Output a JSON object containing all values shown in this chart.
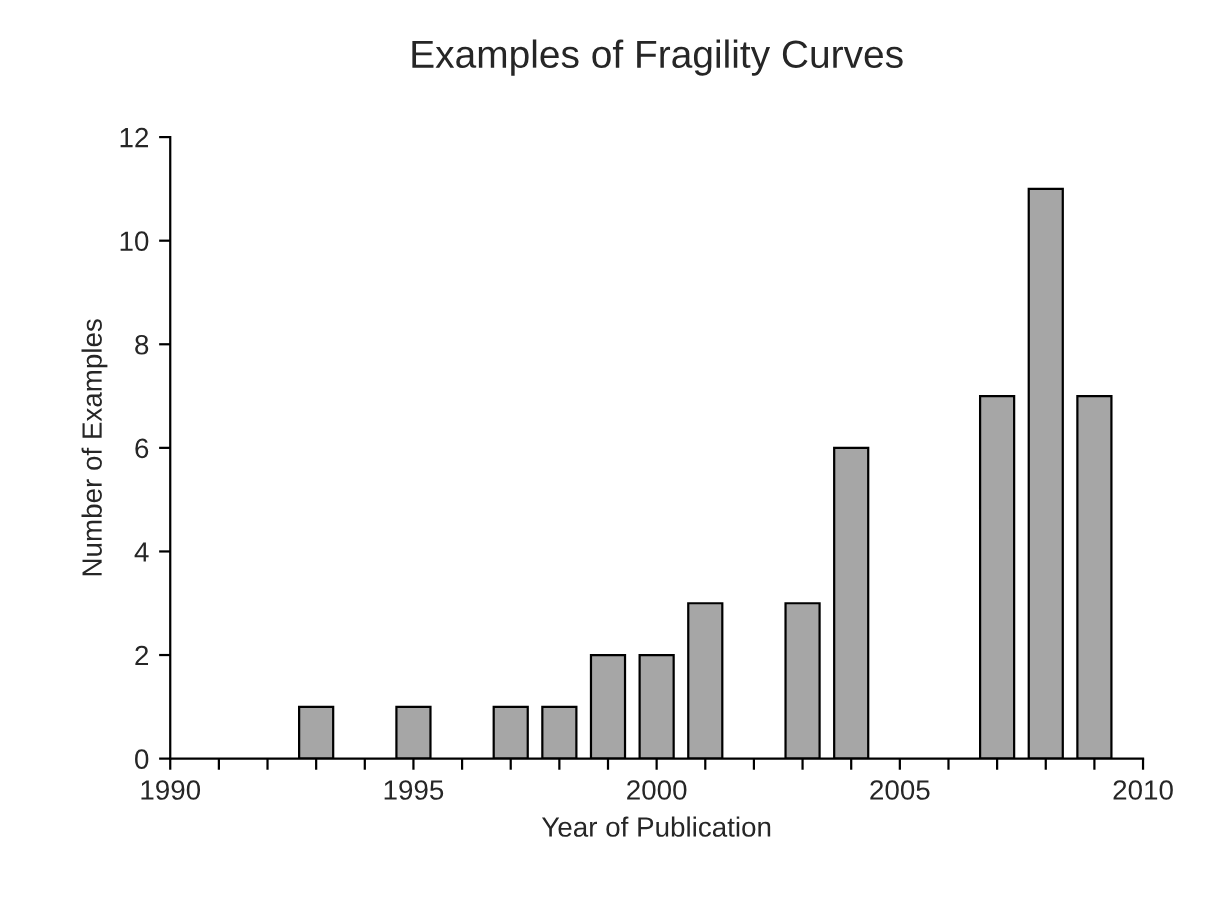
{
  "chart_data": {
    "type": "bar",
    "title": "Examples of Fragility Curves",
    "xlabel": "Year of Publication",
    "ylabel": "Number of Examples",
    "x": [
      1993,
      1995,
      1997,
      1998,
      1999,
      2000,
      2001,
      2003,
      2004,
      2007,
      2008,
      2009
    ],
    "values": [
      1,
      1,
      1,
      1,
      2,
      2,
      3,
      3,
      6,
      7,
      11,
      7
    ],
    "color": "#a6a6a6",
    "xlim": [
      1990,
      2010
    ],
    "xticks": [
      1990,
      {
        "value": 1991,
        "label": null
      },
      {
        "value": 1992,
        "label": null
      },
      {
        "value": 1993,
        "label": null
      },
      {
        "value": 1994,
        "label": null
      },
      1995,
      {
        "value": 1996,
        "label": null
      },
      {
        "value": 1997,
        "label": null
      },
      {
        "value": 1998,
        "label": null
      },
      {
        "value": 1999,
        "label": null
      },
      2000,
      {
        "value": 2001,
        "label": null
      },
      {
        "value": 2002,
        "label": null
      },
      {
        "value": 2003,
        "label": null
      },
      {
        "value": 2004,
        "label": null
      },
      2005,
      {
        "value": 2006,
        "label": null
      },
      {
        "value": 2007,
        "label": null
      },
      {
        "value": 2008,
        "label": null
      },
      {
        "value": 2009,
        "label": null
      },
      2010
    ],
    "ylim": [
      0,
      12
    ],
    "yticks": [
      0,
      2,
      4,
      6,
      8,
      10,
      12
    ],
    "grid": false
  }
}
